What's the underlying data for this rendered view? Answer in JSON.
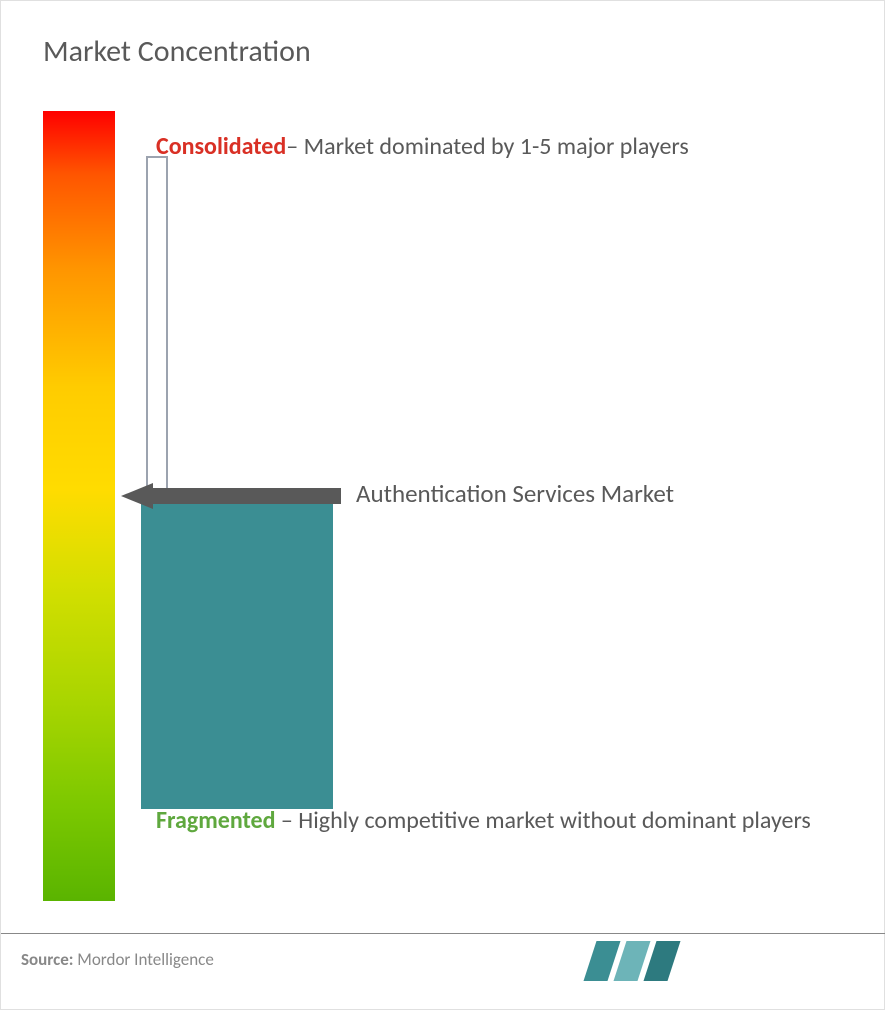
{
  "title": "Market Concentration",
  "gradient": {
    "top_color": "#ff0000",
    "bottom_color": "#5ab400",
    "stops": [
      "#ff0000",
      "#ff5500",
      "#ff9500",
      "#ffcc00",
      "#ffdc00",
      "#d4df00",
      "#a8d500",
      "#7cc800",
      "#5ab400"
    ]
  },
  "consolidated": {
    "label": "Consolidated",
    "label_color": "#d93025",
    "description": "– Market dominated by 1-5 major players"
  },
  "market_name": "Authentication Services Market",
  "market_position": 0.48,
  "teal_block_color": "#3b8e93",
  "arrow_color": "#595959",
  "fragmented": {
    "label": "Fragmented",
    "label_color": "#5fa83e",
    "description": " – Highly competitive market without dominant players"
  },
  "source": {
    "prefix": "Source:",
    "text": " Mordor Intelligence"
  },
  "logo_colors": [
    "#3b8e93",
    "#6db4b8",
    "#2d7a7f"
  ],
  "text_color": "#595959",
  "title_fontsize": 30,
  "body_fontsize": 24,
  "background_color": "#ffffff"
}
